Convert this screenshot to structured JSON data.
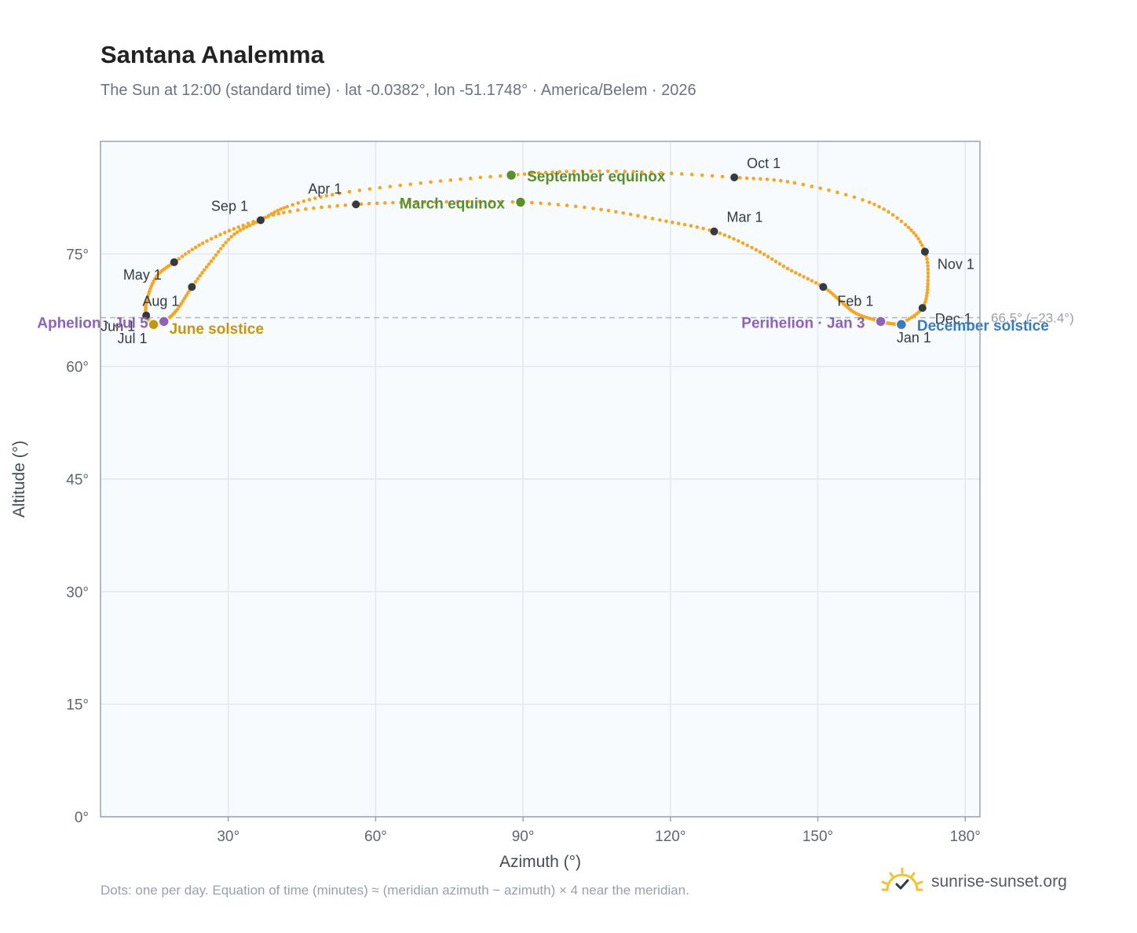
{
  "title": "Santana Analemma",
  "subtitle": "The Sun at 12:00 (standard time) · lat -0.0382°, lon -51.1748° · America/Belem · 2026",
  "footnote": "Dots: one per day. Equation of time (minutes) ≈ (meridian azimuth − azimuth) × 4 near the meridian.",
  "brand": {
    "name": "sunrise-sunset.org",
    "logo_icon": "sun-check-icon",
    "logo_color": "#f2c230"
  },
  "chart_data": {
    "type": "scatter",
    "xlabel": "Azimuth (°)",
    "ylabel": "Altitude (°)",
    "xlim": [
      4,
      183
    ],
    "ylim": [
      0,
      90
    ],
    "grid": true,
    "x_ticks": [
      {
        "value": 30,
        "label": "30°"
      },
      {
        "value": 60,
        "label": "60°"
      },
      {
        "value": 90,
        "label": "90°"
      },
      {
        "value": 120,
        "label": "120°"
      },
      {
        "value": 150,
        "label": "150°"
      },
      {
        "value": 180,
        "label": "180°"
      }
    ],
    "y_ticks": [
      {
        "value": 0,
        "label": "0°"
      },
      {
        "value": 15,
        "label": "15°"
      },
      {
        "value": 30,
        "label": "30°"
      },
      {
        "value": 45,
        "label": "45°"
      },
      {
        "value": 60,
        "label": "60°"
      },
      {
        "value": 75,
        "label": "75°"
      }
    ],
    "colors": {
      "analemma": "#f5a623",
      "month_marker": "#333a44",
      "equinox": "#5a8f2e",
      "june_solstice": "#c8960c",
      "december_solstice": "#3a7bbf",
      "apsis": "#8e63b5",
      "reference_line": "#b0b5bd",
      "plot_background": "#f8fbfd",
      "grid": "#e3e8ee"
    },
    "reference_line": {
      "altitude": 66.5,
      "label": "66.5° (−23.4°)"
    },
    "analemma_path": [
      [
        167.0,
        65.7
      ],
      [
        171.3,
        67.8
      ],
      [
        172.4,
        71.2
      ],
      [
        171.8,
        75.3
      ],
      [
        168.0,
        78.8
      ],
      [
        160.0,
        82.0
      ],
      [
        145.0,
        84.5
      ],
      [
        133.0,
        85.2
      ],
      [
        115.0,
        85.9
      ],
      [
        100.0,
        86.0
      ],
      [
        87.6,
        85.5
      ],
      [
        70.0,
        84.5
      ],
      [
        52.0,
        83.0
      ],
      [
        42.0,
        81.3
      ],
      [
        36.6,
        79.5
      ],
      [
        31.0,
        77.5
      ],
      [
        26.5,
        74.0
      ],
      [
        22.6,
        70.6
      ],
      [
        19.5,
        67.5
      ],
      [
        16.9,
        66.0
      ],
      [
        14.8,
        65.8
      ],
      [
        13.3,
        66.8
      ],
      [
        13.5,
        69.0
      ],
      [
        15.4,
        72.0
      ],
      [
        19.0,
        73.9
      ],
      [
        25.0,
        76.5
      ],
      [
        33.0,
        78.8
      ],
      [
        42.0,
        80.6
      ],
      [
        56.0,
        81.6
      ],
      [
        70.0,
        81.9
      ],
      [
        89.5,
        81.9
      ],
      [
        105.0,
        81.0
      ],
      [
        118.0,
        79.5
      ],
      [
        128.9,
        78.0
      ],
      [
        137.0,
        75.7
      ],
      [
        144.0,
        73.0
      ],
      [
        151.1,
        70.6
      ],
      [
        155.0,
        68.5
      ],
      [
        158.0,
        67.0
      ],
      [
        162.8,
        66.0
      ],
      [
        164.0,
        65.8
      ],
      [
        166.5,
        65.6
      ],
      [
        167.0,
        65.7
      ]
    ],
    "months": [
      {
        "label": "Jan 1",
        "x": 167.0,
        "y": 65.7
      },
      {
        "label": "Feb 1",
        "x": 151.1,
        "y": 70.6
      },
      {
        "label": "Mar 1",
        "x": 128.9,
        "y": 78.0
      },
      {
        "label": "Apr 1",
        "x": 56.0,
        "y": 81.6
      },
      {
        "label": "May 1",
        "x": 19.0,
        "y": 73.9
      },
      {
        "label": "Jun 1",
        "x": 13.3,
        "y": 66.8
      },
      {
        "label": "Jul 1",
        "x": 14.8,
        "y": 65.8
      },
      {
        "label": "Aug 1",
        "x": 22.6,
        "y": 70.6
      },
      {
        "label": "Sep 1",
        "x": 36.6,
        "y": 79.5
      },
      {
        "label": "Oct 1",
        "x": 133.0,
        "y": 85.2
      },
      {
        "label": "Nov 1",
        "x": 171.8,
        "y": 75.3
      },
      {
        "label": "Dec 1",
        "x": 171.3,
        "y": 67.8
      }
    ],
    "events": [
      {
        "label": "March equinox",
        "x": 89.5,
        "y": 81.9,
        "kind": "equinox"
      },
      {
        "label": "September equinox",
        "x": 87.6,
        "y": 85.5,
        "kind": "equinox"
      },
      {
        "label": "June solstice",
        "x": 14.8,
        "y": 65.6,
        "kind": "june_solstice"
      },
      {
        "label": "December solstice",
        "x": 167.0,
        "y": 65.6,
        "kind": "december_solstice"
      },
      {
        "label": "Aphelion · Jul 5",
        "x": 16.9,
        "y": 66.0,
        "kind": "apsis"
      },
      {
        "label": "Perihelion · Jan 3",
        "x": 162.8,
        "y": 66.0,
        "kind": "apsis"
      }
    ]
  }
}
